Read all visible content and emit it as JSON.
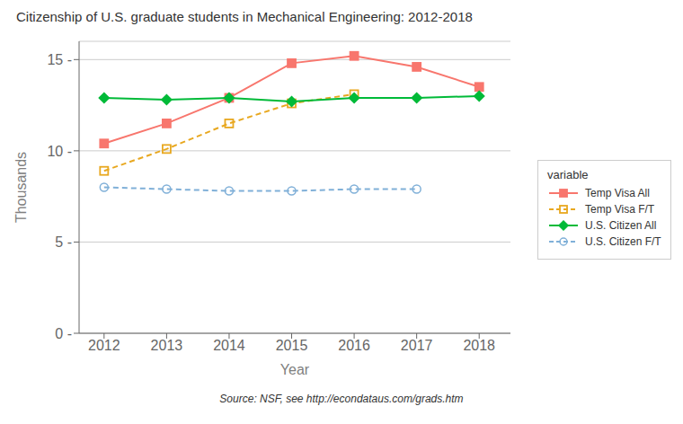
{
  "chart_data": {
    "type": "line",
    "title": "Citizenship of U.S. graduate students in Mechanical Engineering: 2012-2018",
    "subtitle": "Source: NSF, see http://econdataus.com/grads.htm",
    "xlabel": "Year",
    "ylabel": "Thousands",
    "x": [
      2012,
      2013,
      2014,
      2015,
      2016,
      2017,
      2018
    ],
    "xlim": [
      2011.6,
      2018.5
    ],
    "xticks": [
      2012,
      2013,
      2014,
      2015,
      2016,
      2017,
      2018
    ],
    "ylim": [
      0,
      16
    ],
    "yticks": [
      {
        "value": 0,
        "label": "0 -"
      },
      {
        "value": 5,
        "label": "5 -"
      },
      {
        "value": 10,
        "label": "10 -"
      },
      {
        "value": 15,
        "label": "15 -"
      }
    ],
    "grid": "y",
    "legend": "right",
    "legend_title": "variable",
    "series": [
      {
        "name": "Temp Visa All",
        "color": "#F8766D",
        "marker": "square",
        "line_style": "solid",
        "values": [
          10.4,
          11.5,
          12.9,
          14.8,
          15.2,
          14.6,
          13.5
        ]
      },
      {
        "name": "Temp Visa F/T",
        "color": "#E8A820",
        "marker": "open square",
        "line_style": "dashed",
        "values": [
          8.9,
          10.1,
          11.5,
          12.6,
          13.1,
          null,
          null
        ]
      },
      {
        "name": "U.S. Citizen All",
        "color": "#00BA38",
        "marker": "diamond",
        "line_style": "solid",
        "values": [
          12.9,
          12.8,
          12.9,
          12.7,
          12.9,
          12.9,
          13.0
        ]
      },
      {
        "name": "U.S. Citizen F/T",
        "color": "#80B0D8",
        "marker": "open circle",
        "line_style": "dashed",
        "values": [
          8.0,
          7.9,
          7.8,
          7.8,
          7.9,
          7.9,
          null
        ]
      }
    ]
  }
}
